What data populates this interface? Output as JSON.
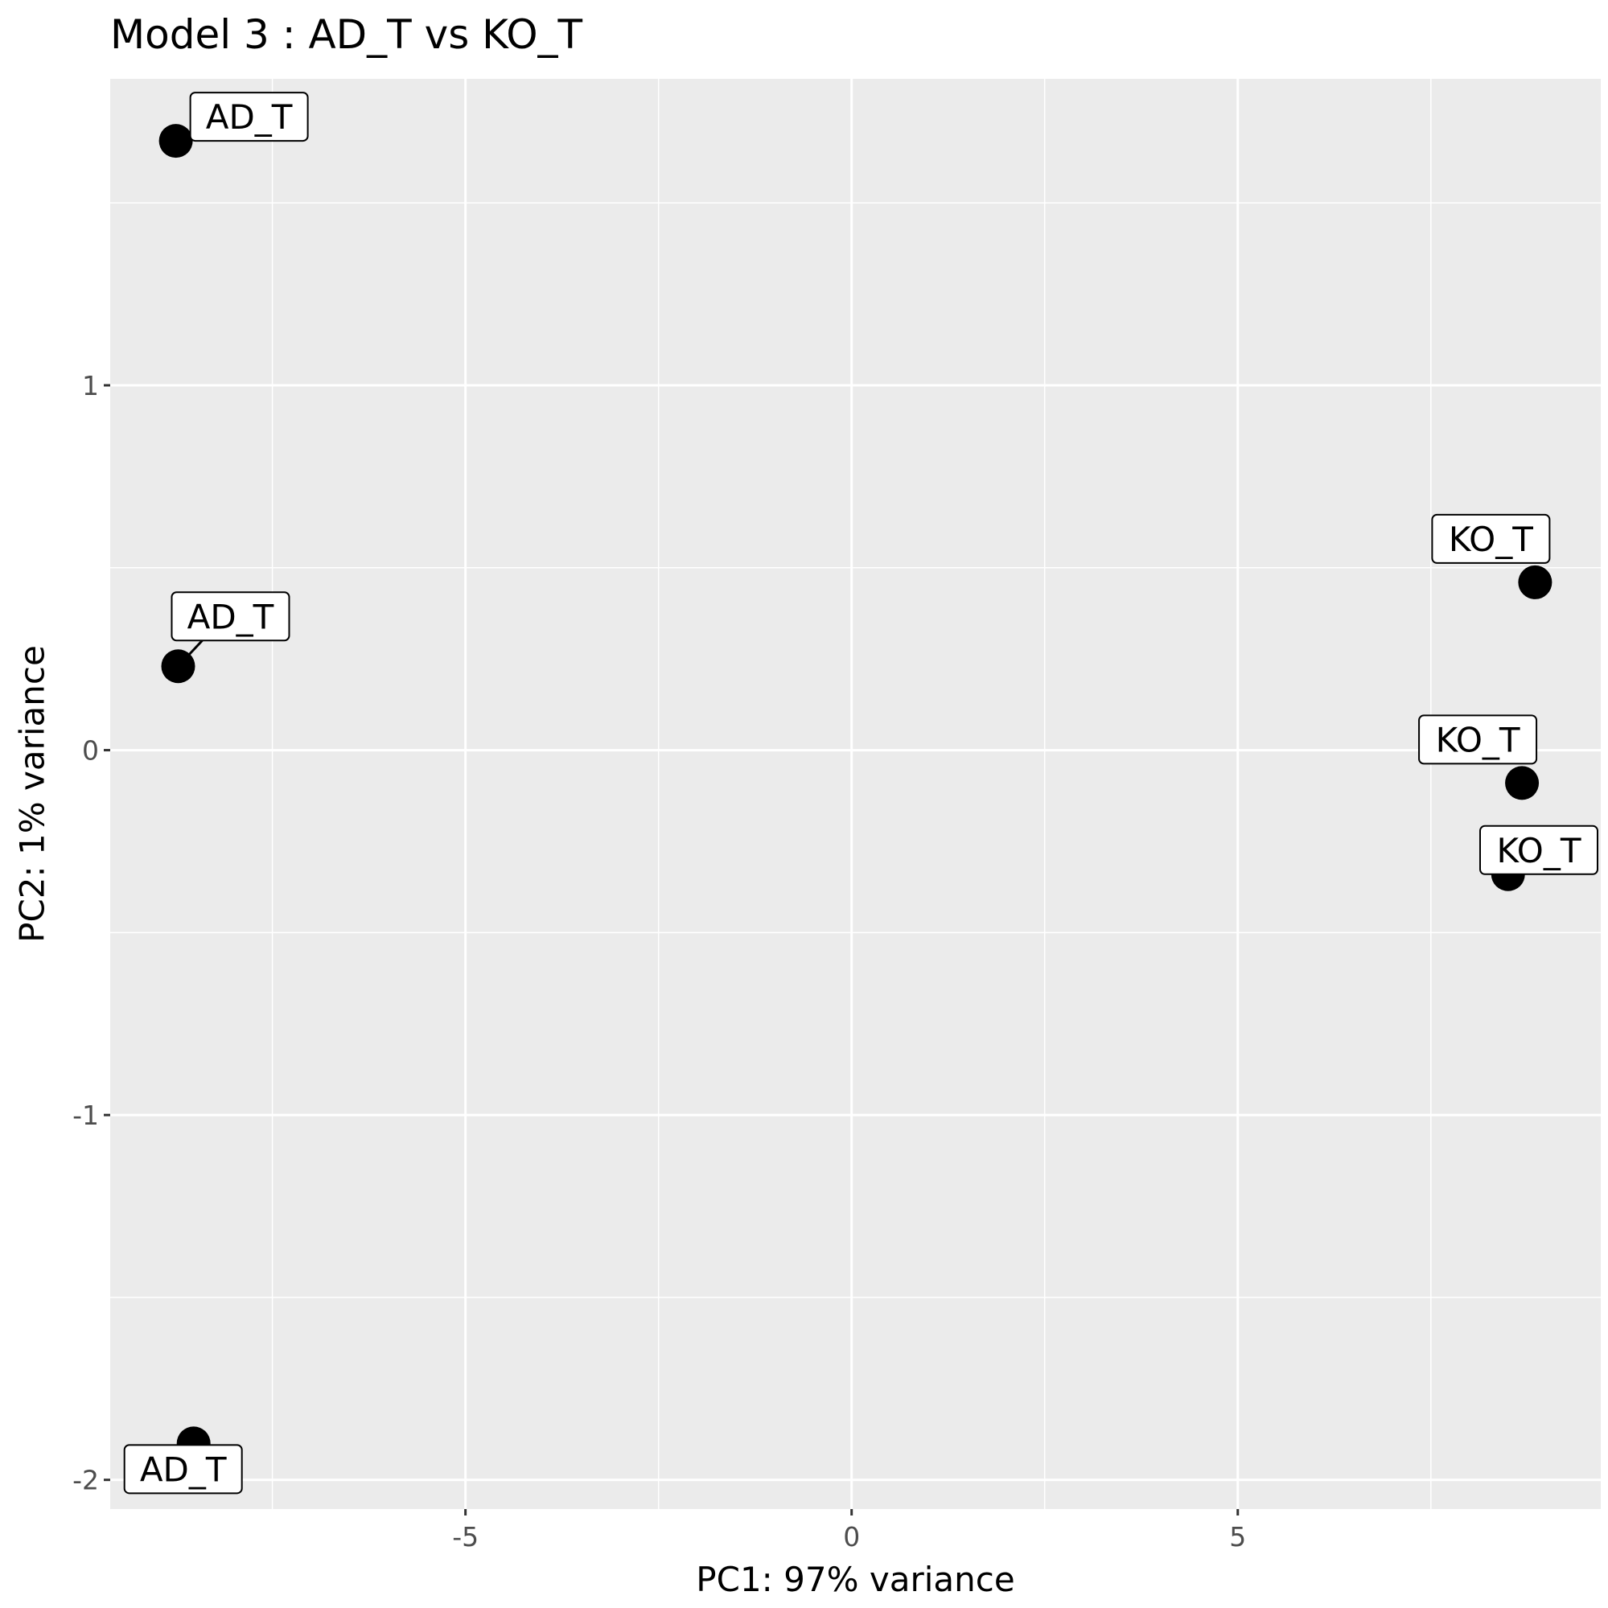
{
  "chart_data": {
    "type": "scatter",
    "title": "Model 3 : AD_T vs KO_T",
    "xlabel": "PC1: 97% variance",
    "ylabel": "PC2: 1% variance",
    "xlim": [
      -9.6,
      9.7
    ],
    "ylim": [
      -2.08,
      1.84
    ],
    "x_ticks": [
      {
        "value": -5,
        "label": "-5"
      },
      {
        "value": 0,
        "label": "0"
      },
      {
        "value": 5,
        "label": "5"
      }
    ],
    "y_ticks": [
      {
        "value": 1,
        "label": "1"
      },
      {
        "value": 0,
        "label": "0"
      },
      {
        "value": -1,
        "label": "-1"
      },
      {
        "value": -2,
        "label": "-2"
      }
    ],
    "x_minor": [
      -7.5,
      -2.5,
      2.5,
      7.5
    ],
    "y_minor": [
      1.5,
      0.5,
      -0.5,
      -1.5
    ],
    "grid": true,
    "points": [
      {
        "x": -8.75,
        "y": 1.67,
        "label": "AD_T",
        "label_pos": "above-right"
      },
      {
        "x": -8.72,
        "y": 0.23,
        "label": "AD_T",
        "label_pos": "above-right"
      },
      {
        "x": -8.52,
        "y": -1.9,
        "label": "AD_T",
        "label_pos": "below-left"
      },
      {
        "x": 8.85,
        "y": 0.46,
        "label": "KO_T",
        "label_pos": "above-left"
      },
      {
        "x": 8.68,
        "y": -0.09,
        "label": "KO_T",
        "label_pos": "above-left"
      },
      {
        "x": 8.5,
        "y": -0.34,
        "label": "KO_T",
        "label_pos": "above-right"
      }
    ],
    "colors": {
      "panel": "#ebebeb",
      "grid": "#ffffff",
      "point": "#000000"
    }
  }
}
